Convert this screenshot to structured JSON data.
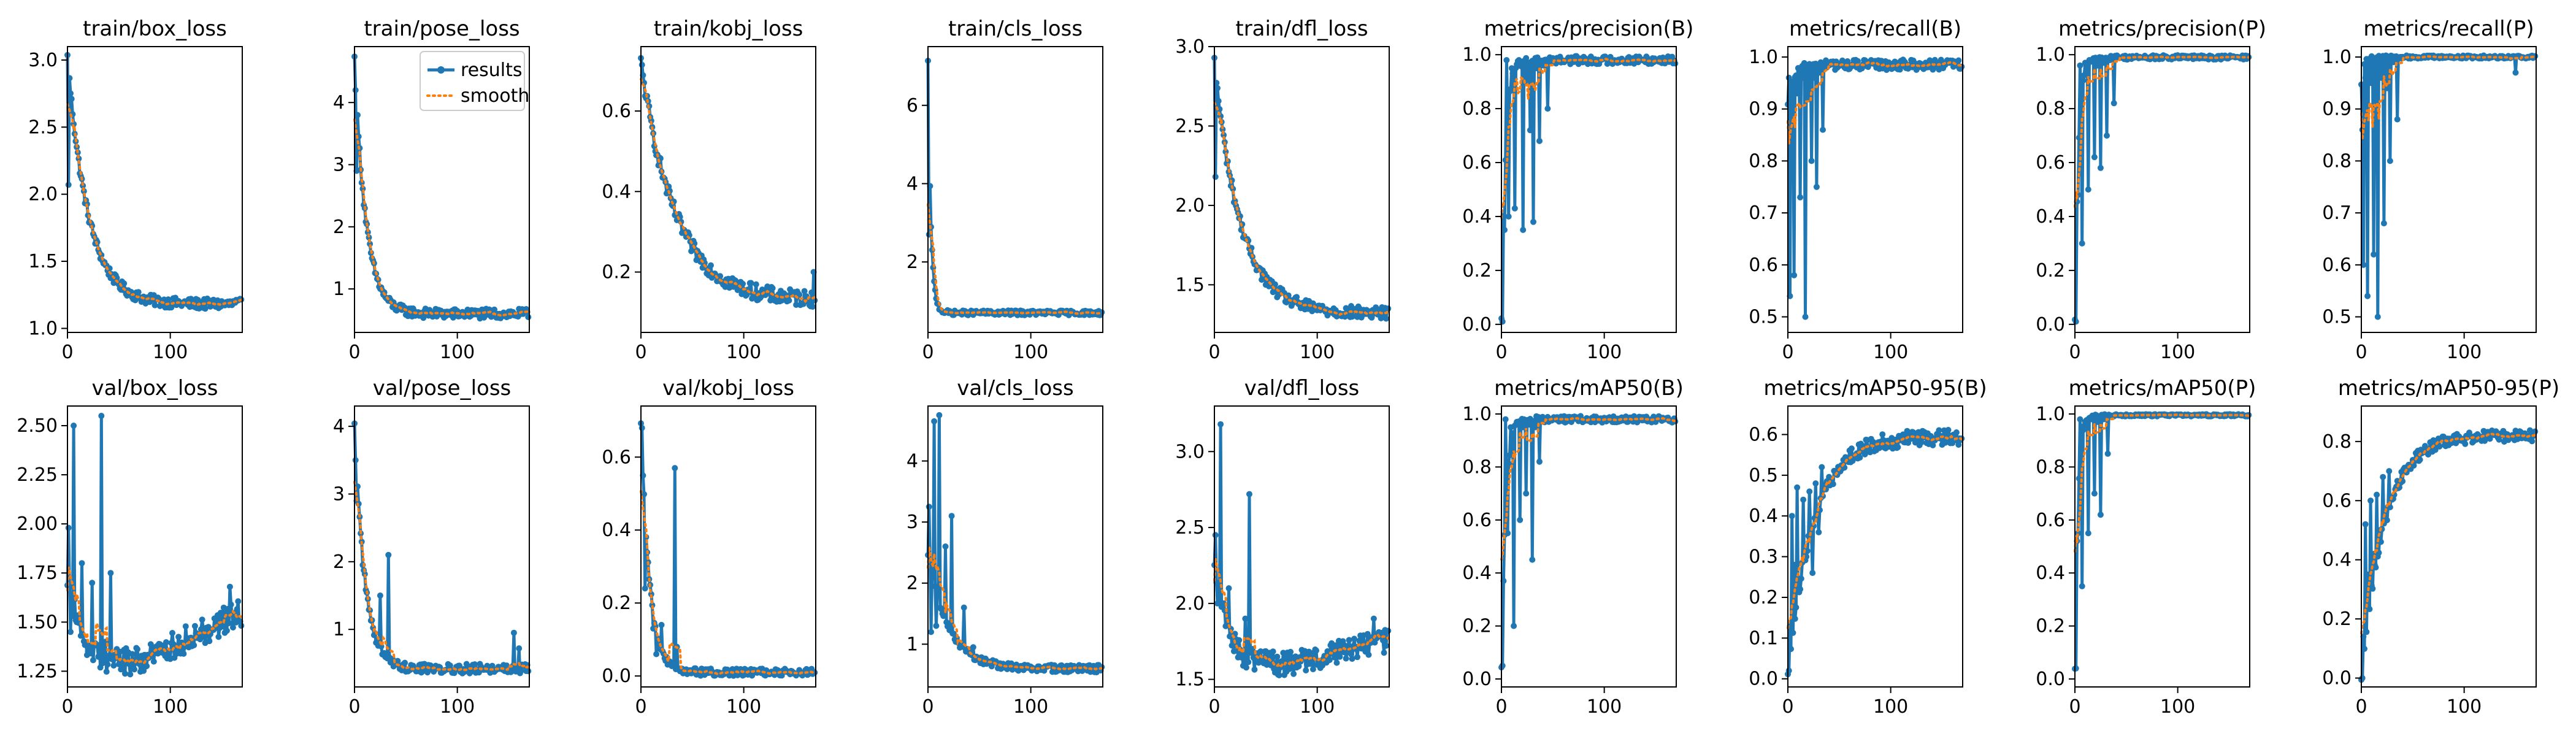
{
  "figure": {
    "legend": {
      "labels": [
        "results",
        "smooth"
      ],
      "colors": [
        "#1f77b4",
        "#ff7f0e"
      ],
      "placement": "upper-right of train/pose_loss"
    }
  },
  "chart_data": [
    {
      "type": "line",
      "title": "train/box_loss",
      "xlim": [
        0,
        170
      ],
      "ylim": [
        0.97,
        3.1
      ],
      "xticks": [
        0,
        100
      ],
      "yticks": [
        1.0,
        1.5,
        2.0,
        2.5,
        3.0
      ],
      "ytick_labels": [
        "1.0",
        "1.5",
        "2.0",
        "2.5",
        "3.0"
      ],
      "grid": false,
      "kind": "decay",
      "start": 3.02,
      "end": 1.18,
      "rate": 0.05,
      "noise": 0.04,
      "spikes": [
        [
          1,
          2.07
        ]
      ]
    },
    {
      "type": "line",
      "title": "train/pose_loss",
      "xlim": [
        0,
        170
      ],
      "ylim": [
        0.3,
        4.9
      ],
      "xticks": [
        0,
        100
      ],
      "yticks": [
        1,
        2,
        3,
        4
      ],
      "ytick_labels": [
        "1",
        "2",
        "3",
        "4"
      ],
      "grid": false,
      "kind": "decay",
      "start": 4.7,
      "end": 0.6,
      "rate": 0.09,
      "noise": 0.08,
      "spikes": [
        [
          1,
          4.2
        ],
        [
          2,
          2.9
        ]
      ],
      "legend": true
    },
    {
      "type": "line",
      "title": "train/kobj_loss",
      "xlim": [
        0,
        170
      ],
      "ylim": [
        0.05,
        0.76
      ],
      "xticks": [
        0,
        100
      ],
      "yticks": [
        0.2,
        0.4,
        0.6
      ],
      "ytick_labels": [
        "0.2",
        "0.4",
        "0.6"
      ],
      "grid": false,
      "kind": "decay",
      "start": 0.72,
      "end": 0.13,
      "rate": 0.03,
      "noise": 0.02,
      "spikes": [
        [
          168,
          0.2
        ]
      ]
    },
    {
      "type": "line",
      "title": "train/cls_loss",
      "xlim": [
        0,
        170
      ],
      "ylim": [
        0.2,
        7.5
      ],
      "xticks": [
        0,
        100
      ],
      "yticks": [
        2,
        4,
        6
      ],
      "ytick_labels": [
        "2",
        "4",
        "6"
      ],
      "grid": false,
      "kind": "decay",
      "start": 7.1,
      "end": 0.7,
      "rate": 0.35,
      "noise": 0.06,
      "spikes": [
        [
          1,
          2.7
        ]
      ]
    },
    {
      "type": "line",
      "title": "train/dfl_loss",
      "xlim": [
        0,
        170
      ],
      "ylim": [
        1.2,
        3.0
      ],
      "xticks": [
        0,
        100
      ],
      "yticks": [
        1.5,
        2.0,
        2.5,
        3.0
      ],
      "ytick_labels": [
        "1.5",
        "2.0",
        "2.5",
        "3.0"
      ],
      "grid": false,
      "kind": "decay",
      "start": 2.9,
      "end": 1.32,
      "rate": 0.04,
      "noise": 0.04,
      "spikes": [
        [
          1,
          2.18
        ]
      ]
    },
    {
      "type": "line",
      "title": "metrics/precision(B)",
      "xlim": [
        0,
        170
      ],
      "ylim": [
        -0.03,
        1.03
      ],
      "xticks": [
        0,
        100
      ],
      "yticks": [
        0.0,
        0.2,
        0.4,
        0.6,
        0.8,
        1.0
      ],
      "ytick_labels": [
        "0.0",
        "0.2",
        "0.4",
        "0.6",
        "0.8",
        "1.0"
      ],
      "grid": false,
      "kind": "rise",
      "start": 0.01,
      "end": 0.98,
      "rate": 0.25,
      "noise": 0.015,
      "spikes": [
        [
          1,
          0.01
        ],
        [
          3,
          0.35
        ],
        [
          5,
          0.98
        ],
        [
          7,
          0.4
        ],
        [
          10,
          0.95
        ],
        [
          13,
          0.43
        ],
        [
          17,
          0.98
        ],
        [
          21,
          0.35
        ],
        [
          25,
          0.9
        ],
        [
          28,
          0.72
        ],
        [
          31,
          0.38
        ],
        [
          34,
          0.95
        ],
        [
          37,
          0.68
        ],
        [
          41,
          0.96
        ],
        [
          45,
          0.8
        ],
        [
          52,
          0.97
        ]
      ]
    },
    {
      "type": "line",
      "title": "metrics/recall(B)",
      "xlim": [
        0,
        170
      ],
      "ylim": [
        0.47,
        1.02
      ],
      "xticks": [
        0,
        100
      ],
      "yticks": [
        0.5,
        0.6,
        0.7,
        0.8,
        0.9,
        1.0
      ],
      "ytick_labels": [
        "0.5",
        "0.6",
        "0.7",
        "0.8",
        "0.9",
        "1.0"
      ],
      "grid": false,
      "kind": "rise",
      "start": 0.9,
      "end": 0.985,
      "rate": 0.2,
      "noise": 0.01,
      "spikes": [
        [
          1,
          0.96
        ],
        [
          2,
          0.54
        ],
        [
          4,
          0.95
        ],
        [
          6,
          0.58
        ],
        [
          9,
          0.93
        ],
        [
          12,
          0.73
        ],
        [
          15,
          0.96
        ],
        [
          17,
          0.5
        ],
        [
          20,
          0.92
        ],
        [
          23,
          0.8
        ],
        [
          26,
          0.96
        ],
        [
          28,
          0.75
        ],
        [
          31,
          0.97
        ],
        [
          34,
          0.86
        ],
        [
          38,
          0.98
        ]
      ]
    },
    {
      "type": "line",
      "title": "metrics/precision(P)",
      "xlim": [
        0,
        170
      ],
      "ylim": [
        -0.03,
        1.03
      ],
      "xticks": [
        0,
        100
      ],
      "yticks": [
        0.0,
        0.2,
        0.4,
        0.6,
        0.8,
        1.0
      ],
      "ytick_labels": [
        "0.0",
        "0.2",
        "0.4",
        "0.6",
        "0.8",
        "1.0"
      ],
      "grid": false,
      "kind": "rise",
      "start": 0.01,
      "end": 0.99,
      "rate": 0.3,
      "noise": 0.008,
      "spikes": [
        [
          1,
          0.01
        ],
        [
          3,
          0.48
        ],
        [
          5,
          0.96
        ],
        [
          7,
          0.3
        ],
        [
          10,
          0.97
        ],
        [
          13,
          0.5
        ],
        [
          16,
          0.98
        ],
        [
          19,
          0.62
        ],
        [
          22,
          0.96
        ],
        [
          25,
          0.58
        ],
        [
          28,
          0.97
        ],
        [
          31,
          0.7
        ],
        [
          34,
          0.98
        ],
        [
          38,
          0.82
        ],
        [
          42,
          0.99
        ]
      ]
    },
    {
      "type": "line",
      "title": "metrics/recall(P)",
      "xlim": [
        0,
        170
      ],
      "ylim": [
        0.47,
        1.02
      ],
      "xticks": [
        0,
        100
      ],
      "yticks": [
        0.5,
        0.6,
        0.7,
        0.8,
        0.9,
        1.0
      ],
      "ytick_labels": [
        "0.5",
        "0.6",
        "0.7",
        "0.8",
        "0.9",
        "1.0"
      ],
      "grid": false,
      "kind": "rise",
      "start": 0.95,
      "end": 1.0,
      "rate": 0.5,
      "noise": 0.003,
      "spikes": [
        [
          1,
          0.86
        ],
        [
          2,
          0.6
        ],
        [
          4,
          0.96
        ],
        [
          6,
          0.54
        ],
        [
          9,
          0.95
        ],
        [
          12,
          0.62
        ],
        [
          14,
          0.92
        ],
        [
          16,
          0.5
        ],
        [
          19,
          0.96
        ],
        [
          22,
          0.68
        ],
        [
          25,
          0.94
        ],
        [
          28,
          0.8
        ],
        [
          31,
          0.99
        ],
        [
          35,
          0.88
        ],
        [
          38,
          1.0
        ],
        [
          150,
          0.97
        ]
      ]
    },
    {
      "type": "line",
      "title": "val/box_loss",
      "xlim": [
        0,
        170
      ],
      "ylim": [
        1.17,
        2.6
      ],
      "xticks": [
        0,
        100
      ],
      "yticks": [
        1.25,
        1.5,
        1.75,
        2.0,
        2.25,
        2.5
      ],
      "ytick_labels": [
        "1.25",
        "1.50",
        "1.75",
        "2.00",
        "2.25",
        "2.50"
      ],
      "grid": false,
      "kind": "valley",
      "start": 1.75,
      "end": 1.55,
      "mid": 1.3,
      "noise": 0.07,
      "spikes": [
        [
          1,
          1.98
        ],
        [
          3,
          1.45
        ],
        [
          6,
          2.5
        ],
        [
          9,
          1.5
        ],
        [
          14,
          1.8
        ],
        [
          20,
          1.35
        ],
        [
          24,
          1.7
        ],
        [
          29,
          1.38
        ],
        [
          33,
          2.55
        ],
        [
          37,
          1.4
        ],
        [
          42,
          1.75
        ],
        [
          158,
          1.68
        ]
      ]
    },
    {
      "type": "line",
      "title": "val/pose_loss",
      "xlim": [
        0,
        170
      ],
      "ylim": [
        0.15,
        4.3
      ],
      "xticks": [
        0,
        100
      ],
      "yticks": [
        1,
        2,
        3,
        4
      ],
      "ytick_labels": [
        "1",
        "2",
        "3",
        "4"
      ],
      "grid": false,
      "kind": "decay",
      "start": 4.1,
      "end": 0.42,
      "rate": 0.1,
      "noise": 0.07,
      "spikes": [
        [
          1,
          3.5
        ],
        [
          2,
          2.9
        ],
        [
          8,
          1.95
        ],
        [
          25,
          1.5
        ],
        [
          33,
          2.1
        ],
        [
          155,
          0.95
        ],
        [
          160,
          0.72
        ]
      ]
    },
    {
      "type": "line",
      "title": "val/kobj_loss",
      "xlim": [
        0,
        170
      ],
      "ylim": [
        -0.03,
        0.74
      ],
      "xticks": [
        0,
        100
      ],
      "yticks": [
        0.0,
        0.2,
        0.4,
        0.6
      ],
      "ytick_labels": [
        "0.0",
        "0.2",
        "0.4",
        "0.6"
      ],
      "grid": false,
      "kind": "decay",
      "start": 0.7,
      "end": 0.01,
      "rate": 0.12,
      "noise": 0.01,
      "spikes": [
        [
          1,
          0.68
        ],
        [
          4,
          0.24
        ],
        [
          12,
          0.13
        ],
        [
          15,
          0.06
        ],
        [
          20,
          0.14
        ],
        [
          28,
          0.04
        ],
        [
          33,
          0.57
        ],
        [
          35,
          0.08
        ],
        [
          40,
          0.02
        ]
      ]
    },
    {
      "type": "line",
      "title": "val/cls_loss",
      "xlim": [
        0,
        170
      ],
      "ylim": [
        0.3,
        4.9
      ],
      "xticks": [
        0,
        100
      ],
      "yticks": [
        1,
        2,
        3,
        4
      ],
      "ytick_labels": [
        "1",
        "2",
        "3",
        "4"
      ],
      "grid": false,
      "kind": "decay",
      "start": 2.5,
      "end": 0.6,
      "rate": 0.05,
      "noise": 0.06,
      "spikes": [
        [
          1,
          3.25
        ],
        [
          3,
          1.2
        ],
        [
          6,
          4.65
        ],
        [
          8,
          1.3
        ],
        [
          11,
          4.75
        ],
        [
          14,
          1.5
        ],
        [
          17,
          2.6
        ],
        [
          20,
          1.3
        ],
        [
          23,
          3.1
        ],
        [
          28,
          1.1
        ],
        [
          35,
          1.6
        ],
        [
          44,
          0.95
        ]
      ]
    },
    {
      "type": "line",
      "title": "val/dfl_loss",
      "xlim": [
        0,
        170
      ],
      "ylim": [
        1.45,
        3.3
      ],
      "xticks": [
        0,
        100
      ],
      "yticks": [
        1.5,
        2.0,
        2.5,
        3.0
      ],
      "ytick_labels": [
        "1.5",
        "2.0",
        "2.5",
        "3.0"
      ],
      "grid": false,
      "kind": "valley",
      "start": 2.3,
      "end": 1.75,
      "mid": 1.6,
      "noise": 0.08,
      "spikes": [
        [
          1,
          2.45
        ],
        [
          3,
          2.0
        ],
        [
          6,
          3.18
        ],
        [
          9,
          2.0
        ],
        [
          14,
          2.1
        ],
        [
          20,
          1.8
        ],
        [
          30,
          1.9
        ],
        [
          34,
          2.72
        ],
        [
          37,
          1.7
        ],
        [
          155,
          1.9
        ]
      ]
    },
    {
      "type": "line",
      "title": "metrics/mAP50(B)",
      "xlim": [
        0,
        170
      ],
      "ylim": [
        -0.03,
        1.03
      ],
      "xticks": [
        0,
        100
      ],
      "yticks": [
        0.0,
        0.2,
        0.4,
        0.6,
        0.8,
        1.0
      ],
      "ytick_labels": [
        "0.0",
        "0.2",
        "0.4",
        "0.6",
        "0.8",
        "1.0"
      ],
      "grid": false,
      "kind": "rise",
      "start": 0.05,
      "end": 0.98,
      "rate": 0.25,
      "noise": 0.012,
      "spikes": [
        [
          1,
          0.05
        ],
        [
          2,
          0.37
        ],
        [
          4,
          0.98
        ],
        [
          6,
          0.55
        ],
        [
          9,
          0.95
        ],
        [
          12,
          0.2
        ],
        [
          15,
          0.97
        ],
        [
          18,
          0.6
        ],
        [
          21,
          0.95
        ],
        [
          24,
          0.7
        ],
        [
          27,
          0.96
        ],
        [
          30,
          0.45
        ],
        [
          33,
          0.95
        ],
        [
          37,
          0.82
        ],
        [
          41,
          0.97
        ]
      ]
    },
    {
      "type": "line",
      "title": "metrics/mAP50-95(B)",
      "xlim": [
        0,
        170
      ],
      "ylim": [
        -0.02,
        0.67
      ],
      "xticks": [
        0,
        100
      ],
      "yticks": [
        0.0,
        0.1,
        0.2,
        0.3,
        0.4,
        0.5,
        0.6
      ],
      "ytick_labels": [
        "0.0",
        "0.1",
        "0.2",
        "0.3",
        "0.4",
        "0.5",
        "0.6"
      ],
      "grid": false,
      "kind": "rise",
      "start": 0.02,
      "end": 0.595,
      "rate": 0.04,
      "noise": 0.02,
      "spikes": [
        [
          1,
          0.02
        ],
        [
          2,
          0.13
        ],
        [
          4,
          0.4
        ],
        [
          6,
          0.28
        ],
        [
          9,
          0.47
        ],
        [
          12,
          0.22
        ],
        [
          15,
          0.44
        ],
        [
          18,
          0.3
        ],
        [
          21,
          0.46
        ],
        [
          24,
          0.26
        ],
        [
          27,
          0.48
        ],
        [
          30,
          0.36
        ],
        [
          33,
          0.52
        ]
      ]
    },
    {
      "type": "line",
      "title": "metrics/mAP50(P)",
      "xlim": [
        0,
        170
      ],
      "ylim": [
        -0.03,
        1.03
      ],
      "xticks": [
        0,
        100
      ],
      "yticks": [
        0.0,
        0.2,
        0.4,
        0.6,
        0.8,
        1.0
      ],
      "ytick_labels": [
        "0.0",
        "0.2",
        "0.4",
        "0.6",
        "0.8",
        "1.0"
      ],
      "grid": false,
      "kind": "rise",
      "start": 0.04,
      "end": 0.995,
      "rate": 0.35,
      "noise": 0.004,
      "spikes": [
        [
          1,
          0.04
        ],
        [
          3,
          0.55
        ],
        [
          5,
          0.98
        ],
        [
          7,
          0.35
        ],
        [
          10,
          0.97
        ],
        [
          13,
          0.55
        ],
        [
          16,
          0.98
        ],
        [
          19,
          0.7
        ],
        [
          22,
          0.97
        ],
        [
          25,
          0.62
        ],
        [
          28,
          0.98
        ],
        [
          32,
          0.85
        ],
        [
          36,
          0.99
        ]
      ]
    },
    {
      "type": "line",
      "title": "metrics/mAP50-95(P)",
      "xlim": [
        0,
        170
      ],
      "ylim": [
        -0.03,
        0.92
      ],
      "xticks": [
        0,
        100
      ],
      "yticks": [
        0.0,
        0.2,
        0.4,
        0.6,
        0.8
      ],
      "ytick_labels": [
        "0.0",
        "0.2",
        "0.4",
        "0.6",
        "0.8"
      ],
      "grid": false,
      "kind": "rise",
      "start": 0.0,
      "end": 0.82,
      "rate": 0.045,
      "noise": 0.02,
      "spikes": [
        [
          1,
          0.0
        ],
        [
          2,
          0.14
        ],
        [
          4,
          0.52
        ],
        [
          6,
          0.35
        ],
        [
          9,
          0.6
        ],
        [
          12,
          0.42
        ],
        [
          15,
          0.62
        ],
        [
          18,
          0.5
        ],
        [
          21,
          0.68
        ],
        [
          24,
          0.55
        ],
        [
          27,
          0.7
        ],
        [
          32,
          0.62
        ]
      ]
    }
  ]
}
